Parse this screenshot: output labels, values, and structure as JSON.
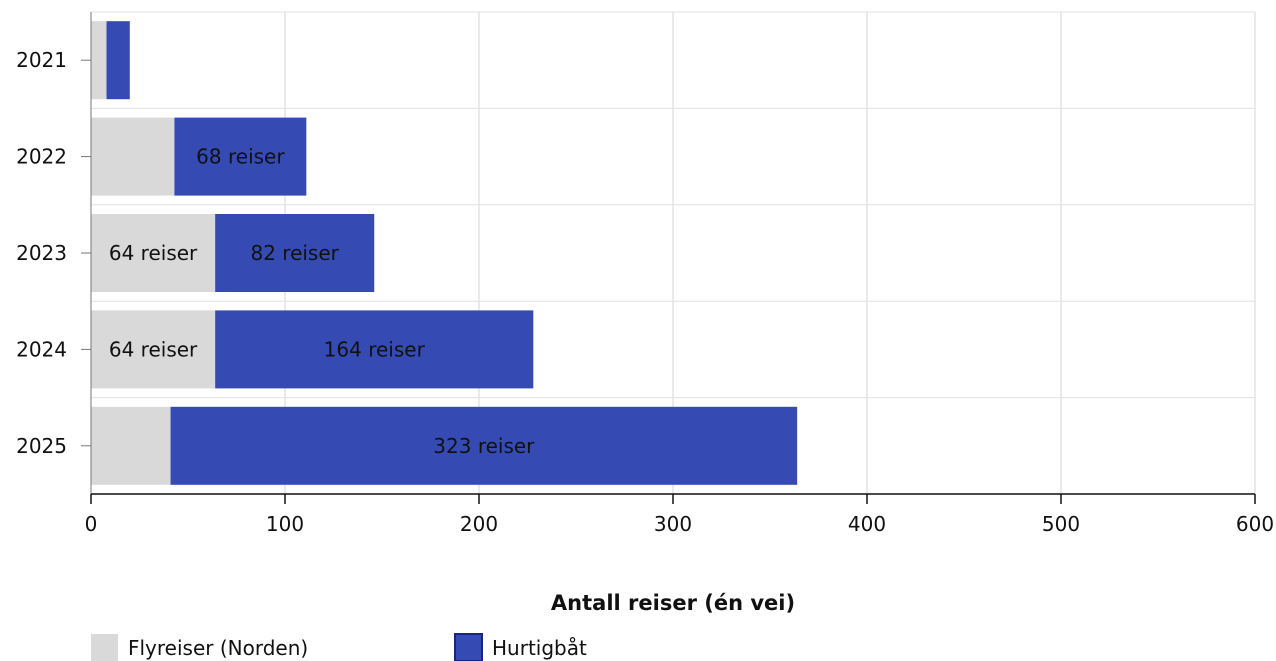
{
  "chart_data": {
    "type": "bar",
    "orientation": "horizontal",
    "stacked": true,
    "categories": [
      "2021",
      "2022",
      "2023",
      "2024",
      "2025"
    ],
    "series": [
      {
        "name": "Flyreiser (Norden)",
        "color": "#d9d9d9",
        "values": [
          8,
          43,
          64,
          64,
          41
        ],
        "labels": [
          "",
          "",
          "64 reiser",
          "64 reiser",
          ""
        ]
      },
      {
        "name": "Hurtigbåt",
        "color": "#354bb3",
        "values": [
          12,
          68,
          82,
          164,
          323
        ],
        "labels": [
          "",
          "68 reiser",
          "82 reiser",
          "164 reiser",
          "323 reiser"
        ]
      }
    ],
    "xlabel": "Antall reiser (én vei)",
    "ylabel": "",
    "xlim": [
      0,
      600
    ],
    "xticks": [
      "0",
      "100",
      "200",
      "300",
      "400",
      "500",
      "600"
    ],
    "grid": true,
    "legend_position": "bottom-left"
  }
}
